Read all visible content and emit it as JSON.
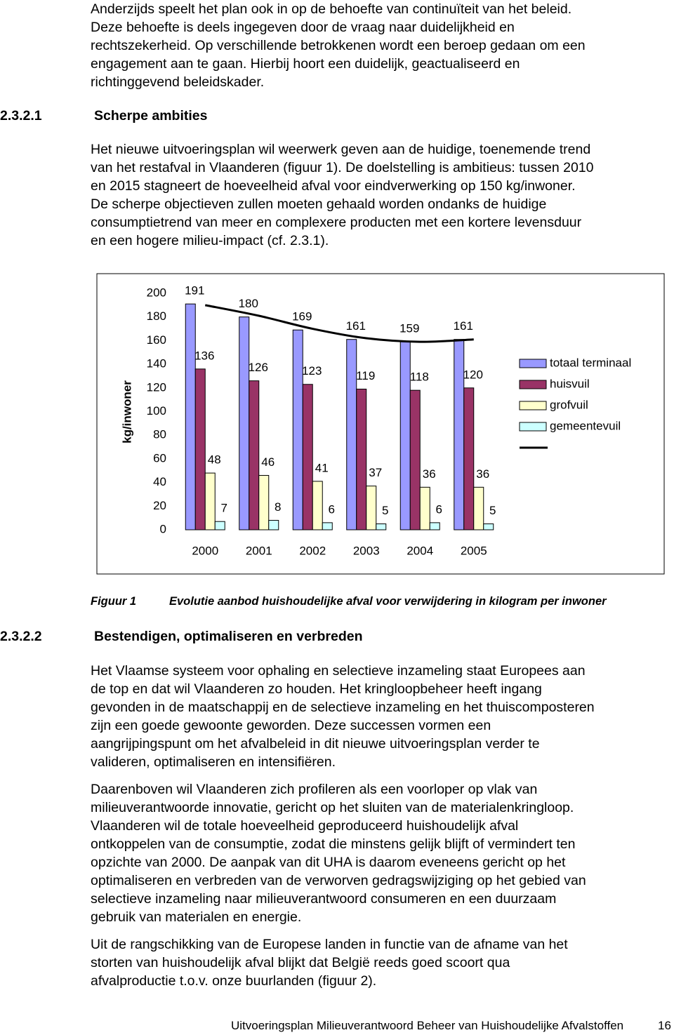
{
  "intro": {
    "lines": [
      "Anderzijds speelt het plan ook in op de behoefte van continuïteit van het beleid.",
      "Deze behoefte is deels ingegeven door de vraag naar duidelijkheid en",
      "rechtszekerheid. Op verschillende betrokkenen wordt een beroep gedaan om een",
      "engagement aan te gaan. Hierbij hoort een duidelijk, geactualiseerd en",
      "richtinggevend beleidskader."
    ]
  },
  "sections": [
    {
      "number": "2.3.2.1",
      "title": "Scherpe ambities",
      "paragraphs": [
        [
          "Het nieuwe uitvoeringsplan wil weerwerk geven aan de huidige, toenemende trend",
          "van het restafval in Vlaanderen (figuur 1). De doelstelling is ambitieus: tussen 2010",
          "en 2015 stagneert de hoeveelheid afval voor eindverwerking op 150 kg/inwoner.",
          "De scherpe objectieven zullen moeten gehaald worden ondanks de huidige",
          "consumptietrend van meer en complexere producten met een kortere levensduur",
          "en een hogere milieu-impact (cf. 2.3.1)."
        ]
      ]
    },
    {
      "number": "2.3.2.2",
      "title": "Bestendigen, optimaliseren en verbreden",
      "paragraphs": [
        [
          "Het Vlaamse systeem voor ophaling en selectieve inzameling staat Europees aan",
          "de top en dat wil Vlaanderen zo houden. Het kringloopbeheer heeft ingang",
          "gevonden in de maatschappij en de selectieve inzameling en het thuiscomposteren",
          "zijn een goede gewoonte geworden. Deze successen vormen een",
          "aangrijpingspunt om het afvalbeleid in dit nieuwe uitvoeringsplan verder te",
          "valideren, optimaliseren en intensifiëren."
        ],
        [
          "Daarenboven wil Vlaanderen zich profileren als een voorloper op vlak van",
          "milieuverantwoorde innovatie, gericht op het sluiten van de materialenkringloop.",
          "Vlaanderen wil de totale hoeveelheid geproduceerd huishoudelijk afval",
          "ontkoppelen van de consumptie, zodat die minstens gelijk blijft of vermindert ten",
          "opzichte van 2000. De aanpak van dit UHA is daarom eveneens gericht op het",
          "optimaliseren en verbreden van de verworven gedragswijziging op het gebied van",
          "selectieve inzameling naar milieuverantwoord consumeren en een duurzaam",
          "gebruik van materialen en energie."
        ],
        [
          "Uit de rangschikking van de Europese landen in functie van de afname van het",
          "storten van huishoudelijk afval blijkt dat België reeds goed scoort qua",
          "afvalproductie t.o.v. onze buurlanden (figuur 2)."
        ]
      ]
    }
  ],
  "figure": {
    "label": "Figuur 1",
    "caption": "Evolutie aanbod huishoudelijke afval voor verwijdering in kilogram per inwoner"
  },
  "chart_data": {
    "type": "bar",
    "ylabel": "kg/inwoner",
    "categories": [
      "2000",
      "2001",
      "2002",
      "2003",
      "2004",
      "2005"
    ],
    "ylim": [
      0,
      200
    ],
    "yticks": [
      0,
      20,
      40,
      60,
      80,
      100,
      120,
      140,
      160,
      180,
      200
    ],
    "grid": false,
    "legend": "right",
    "series": [
      {
        "name": "totaal terminaal",
        "color": "#9999ff",
        "values": [
          191,
          180,
          169,
          161,
          159,
          161
        ]
      },
      {
        "name": "huisvuil",
        "color": "#993366",
        "values": [
          136,
          126,
          123,
          119,
          118,
          120
        ]
      },
      {
        "name": "grofvuil",
        "color": "#ffffcc",
        "values": [
          48,
          46,
          41,
          37,
          36,
          36
        ]
      },
      {
        "name": "gemeentevuil",
        "color": "#ccffff",
        "values": [
          7,
          8,
          6,
          5,
          6,
          5
        ]
      },
      {
        "type": "line",
        "color": "#000000",
        "values": [
          190,
          181,
          170,
          162,
          159,
          161
        ]
      }
    ]
  },
  "footer": {
    "text": "Uitvoeringsplan Milieuverantwoord Beheer van Huishoudelijke Afvalstoffen",
    "page": "16"
  }
}
